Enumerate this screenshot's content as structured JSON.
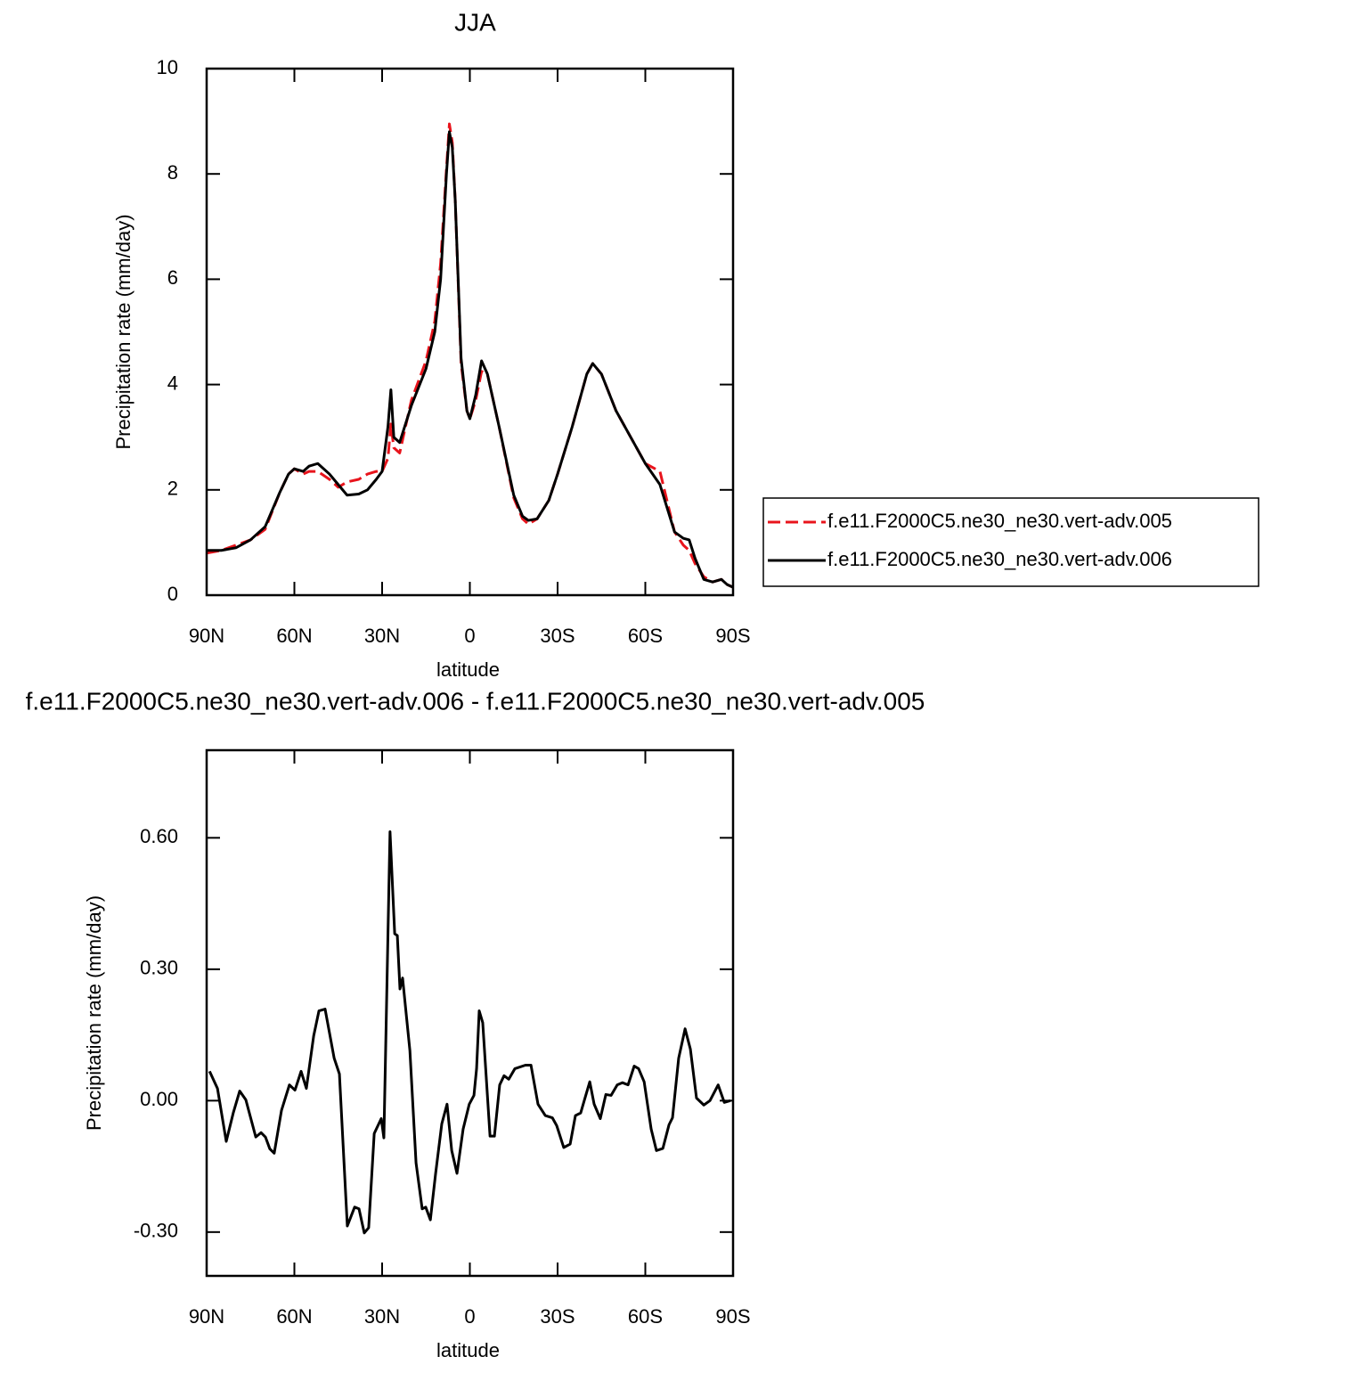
{
  "chart_data": [
    {
      "type": "line",
      "title": "JJA",
      "x_label": "latitude",
      "y_label": "Precipitation rate (mm/day)",
      "x": [
        90,
        85,
        80,
        75,
        70,
        65,
        62,
        60,
        57,
        55,
        52,
        48,
        45,
        42,
        38,
        35,
        32,
        30,
        28,
        27,
        26,
        24,
        20,
        15,
        12,
        10,
        8,
        7,
        6,
        5,
        3,
        1,
        0,
        -2,
        -4,
        -6,
        -10,
        -15,
        -18,
        -20,
        -23,
        -27,
        -30,
        -35,
        -40,
        -42,
        -45,
        -50,
        -55,
        -60,
        -65,
        -70,
        -73,
        -75,
        -77,
        -80,
        -83,
        -86,
        -88,
        -90
      ],
      "series": [
        {
          "name": "f.e11.F2000C5.ne30_ne30.vert-adv.005",
          "color": "#e8141c",
          "dash": true,
          "values": [
            0.8,
            0.85,
            0.95,
            1.05,
            1.25,
            1.95,
            2.3,
            2.4,
            2.3,
            2.35,
            2.35,
            2.2,
            2.05,
            2.15,
            2.2,
            2.3,
            2.35,
            2.35,
            2.6,
            3.25,
            2.8,
            2.7,
            3.7,
            4.45,
            5.2,
            6.3,
            8.1,
            8.95,
            8.6,
            7.5,
            4.4,
            3.5,
            3.35,
            3.7,
            4.25,
            4.2,
            3.2,
            1.85,
            1.45,
            1.35,
            1.45,
            1.8,
            2.3,
            3.2,
            4.2,
            4.4,
            4.2,
            3.5,
            3.0,
            2.5,
            2.35,
            1.2,
            0.95,
            0.85,
            0.6,
            0.35,
            0.25,
            0.3,
            0.2,
            0.15
          ]
        },
        {
          "name": "f.e11.F2000C5.ne30_ne30.vert-adv.006",
          "color": "#000000",
          "dash": false,
          "values": [
            0.85,
            0.85,
            0.9,
            1.05,
            1.3,
            1.95,
            2.3,
            2.4,
            2.35,
            2.45,
            2.5,
            2.3,
            2.1,
            1.9,
            1.92,
            2.0,
            2.2,
            2.35,
            3.2,
            3.9,
            3.0,
            2.9,
            3.6,
            4.3,
            5.0,
            6.0,
            8.0,
            8.8,
            8.5,
            7.5,
            4.5,
            3.5,
            3.35,
            3.8,
            4.45,
            4.2,
            3.2,
            1.9,
            1.5,
            1.42,
            1.45,
            1.8,
            2.3,
            3.2,
            4.2,
            4.4,
            4.2,
            3.5,
            3.0,
            2.5,
            2.1,
            1.2,
            1.08,
            1.05,
            0.7,
            0.3,
            0.25,
            0.3,
            0.2,
            0.15
          ]
        }
      ],
      "xlim": [
        90,
        -90
      ],
      "xticks": [
        {
          "value": 90,
          "label": "90N"
        },
        {
          "value": 60,
          "label": "60N"
        },
        {
          "value": 30,
          "label": "30N"
        },
        0,
        {
          "value": -30,
          "label": "30S"
        },
        {
          "value": -60,
          "label": "60S"
        },
        {
          "value": -90,
          "label": "90S"
        }
      ],
      "ylim": [
        0,
        10
      ],
      "yticks": [
        0,
        2,
        4,
        6,
        8,
        10
      ],
      "grid": false,
      "legend": "right"
    },
    {
      "type": "line",
      "title": "f.e11.F2000C5.ne30_ne30.vert-adv.006 - f.e11.F2000C5.ne30_ne30.vert-adv.005",
      "x_label": "latitude",
      "y_label": "Precipitation rate (mm/day)",
      "x": [
        89,
        86.3,
        83.3,
        80.9,
        78.7,
        76.6,
        74.8,
        73.2,
        71.4,
        69.9,
        68.4,
        66.9,
        64.4,
        61.7,
        59.8,
        57.7,
        55.9,
        53.4,
        51.6,
        49.5,
        46.4,
        44.6,
        41.9,
        39.4,
        37.9,
        36.1,
        34.6,
        32.7,
        30.3,
        29.4,
        27.3,
        25.7,
        24.8,
        23.9,
        23,
        20.5,
        18.4,
        16.3,
        15.1,
        13.5,
        11.7,
        9.6,
        7.8,
        6.2,
        4.4,
        2.3,
        0.2,
        -1.4,
        -2.3,
        -3.2,
        -4.4,
        -6.9,
        -8.4,
        -10.2,
        -11.7,
        -13.3,
        -15.4,
        -19,
        -20.9,
        -23.3,
        -25.8,
        -28.2,
        -29.7,
        -32.1,
        -34.3,
        -36.1,
        -37.9,
        -39.2,
        -41,
        -42.5,
        -44.6,
        -46.5,
        -48.3,
        -50.4,
        -52.2,
        -54.1,
        -56.2,
        -57.7,
        -59.6,
        -62,
        -63.8,
        -66,
        -68.1,
        -69.3,
        -71.4,
        -73.6,
        -75.4,
        -77.5,
        -80,
        -82.1,
        -84.9,
        -87,
        -89.1
      ],
      "values": [
        0.067,
        0.028,
        -0.093,
        -0.028,
        0.022,
        0.002,
        -0.043,
        -0.083,
        -0.073,
        -0.083,
        -0.11,
        -0.12,
        -0.022,
        0.036,
        0.024,
        0.067,
        0.028,
        0.148,
        0.205,
        0.209,
        0.097,
        0.061,
        -0.286,
        -0.243,
        -0.247,
        -0.302,
        -0.29,
        -0.075,
        -0.041,
        -0.085,
        0.614,
        0.381,
        0.377,
        0.255,
        0.28,
        0.114,
        -0.142,
        -0.247,
        -0.243,
        -0.272,
        -0.166,
        -0.053,
        -0.008,
        -0.114,
        -0.166,
        -0.065,
        -0.008,
        0.012,
        0.073,
        0.205,
        0.178,
        -0.081,
        -0.081,
        0.036,
        0.057,
        0.049,
        0.073,
        0.081,
        0.081,
        -0.008,
        -0.034,
        -0.039,
        -0.057,
        -0.107,
        -0.099,
        -0.034,
        -0.028,
        0.002,
        0.043,
        -0.008,
        -0.041,
        0.014,
        0.012,
        0.036,
        0.041,
        0.036,
        0.079,
        0.073,
        0.043,
        -0.065,
        -0.114,
        -0.109,
        -0.055,
        -0.039,
        0.097,
        0.164,
        0.118,
        0.006,
        -0.01,
        0.0,
        0.036,
        -0.004,
        0.0
      ],
      "color": "#000000",
      "xlim": [
        90,
        -90
      ],
      "xticks": [
        {
          "value": 90,
          "label": "90N"
        },
        {
          "value": 60,
          "label": "60N"
        },
        {
          "value": 30,
          "label": "30N"
        },
        0,
        {
          "value": -30,
          "label": "30S"
        },
        {
          "value": -60,
          "label": "60S"
        },
        {
          "value": -90,
          "label": "90S"
        }
      ],
      "ylim": [
        -0.4,
        0.8
      ],
      "yticks": [
        {
          "value": -0.3,
          "label": "-0.30"
        },
        {
          "value": 0,
          "label": "0.00"
        },
        {
          "value": 0.3,
          "label": "0.30"
        },
        {
          "value": 0.6,
          "label": "0.60"
        }
      ],
      "grid": false
    }
  ]
}
